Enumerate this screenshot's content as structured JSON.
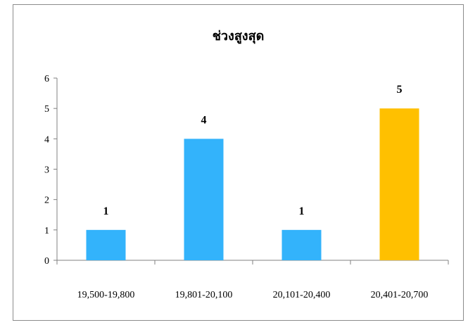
{
  "chart_data": {
    "type": "bar",
    "title": "ช่วงสูงสุด",
    "categories": [
      "19,500-19,800",
      "19,801-20,100",
      "20,101-20,400",
      "20,401-20,700"
    ],
    "values": [
      1,
      4,
      1,
      5
    ],
    "bar_colors": [
      "#33b3fb",
      "#33b3fb",
      "#33b3fb",
      "#ffc000"
    ],
    "data_labels": [
      "1",
      "4",
      "1",
      "5"
    ],
    "ylim": [
      0,
      6
    ],
    "yticks": [
      "0",
      "1",
      "2",
      "3",
      "4",
      "5",
      "6"
    ],
    "grid": false,
    "legend": "none"
  }
}
